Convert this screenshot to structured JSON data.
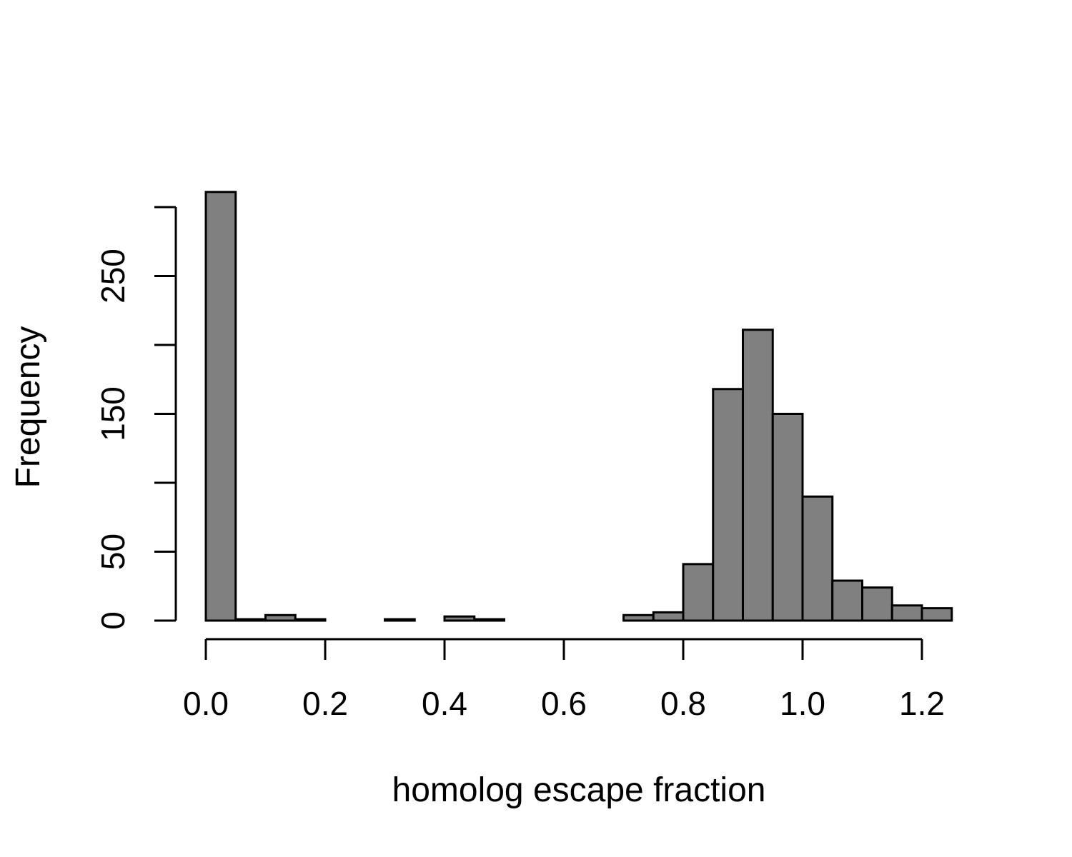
{
  "chart_data": {
    "type": "bar",
    "title": "",
    "xlabel": "homolog escape fraction",
    "ylabel": "Frequency",
    "bin_width": 0.05,
    "bin_starts": [
      0.0,
      0.05,
      0.1,
      0.15,
      0.2,
      0.25,
      0.3,
      0.35,
      0.4,
      0.45,
      0.5,
      0.55,
      0.6,
      0.65,
      0.7,
      0.75,
      0.8,
      0.85,
      0.9,
      0.95,
      1.0,
      1.05,
      1.1,
      1.15,
      1.2
    ],
    "values": [
      311,
      1,
      4,
      1,
      0,
      0,
      1,
      0,
      3,
      1,
      0,
      0,
      0,
      0,
      4,
      6,
      41,
      168,
      211,
      150,
      90,
      29,
      24,
      11,
      9
    ],
    "xlim": [
      0.0,
      1.25
    ],
    "ylim": [
      0,
      300
    ],
    "x_ticks": [
      0.0,
      0.2,
      0.4,
      0.6,
      0.8,
      1.0,
      1.2
    ],
    "x_tick_labels": [
      "0.0",
      "0.2",
      "0.4",
      "0.6",
      "0.8",
      "1.0",
      "1.2"
    ],
    "y_ticks": [
      0,
      50,
      100,
      150,
      200,
      250,
      300
    ],
    "y_tick_labels": [
      "0",
      "50",
      "150",
      "250"
    ],
    "y_tick_labels_at": [
      0,
      50,
      150,
      250
    ],
    "bar_color": "#808080",
    "grid": false,
    "legend": "none"
  }
}
